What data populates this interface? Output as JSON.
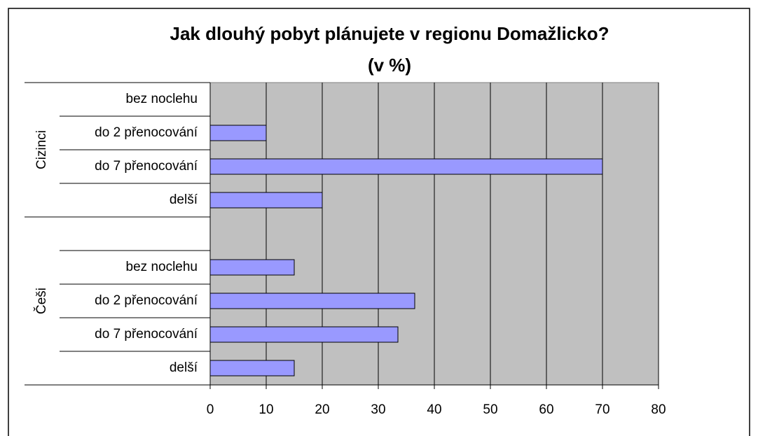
{
  "chart_data": {
    "type": "bar",
    "orientation": "horizontal",
    "title": [
      "Jak dlouhý pobyt plánujete v regionu Domažlicko?",
      "(v %)"
    ],
    "categories": [
      "bez noclehu",
      "do 2 přenocování",
      "do 7 přenocování",
      "delší",
      null,
      "bez noclehu",
      "do 2 přenocování",
      "do 7 přenocování",
      "delší"
    ],
    "values": [
      0,
      10,
      70,
      20,
      null,
      15,
      36.5,
      33.5,
      15
    ],
    "groups": [
      {
        "name": "Cizinci",
        "count": 4
      },
      {
        "name": "Češi",
        "count": 5
      }
    ],
    "color": "#9999ff",
    "xlim": [
      0,
      80
    ],
    "xticks": [
      0,
      10,
      20,
      30,
      40,
      50,
      60,
      70,
      80
    ],
    "grid": true
  }
}
